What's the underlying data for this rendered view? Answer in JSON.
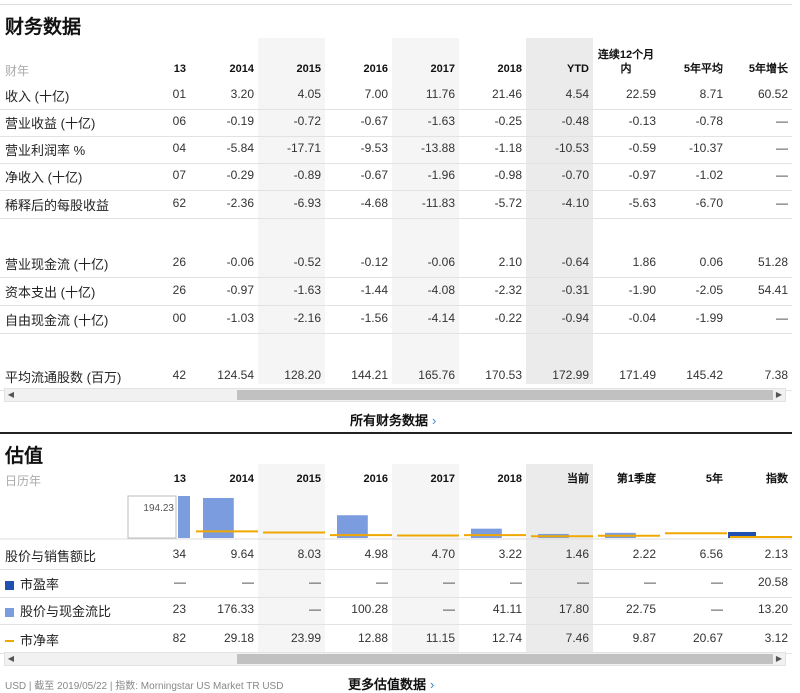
{
  "financials": {
    "title": "财务数据",
    "year_label": "财年",
    "columns": [
      "13",
      "2014",
      "2015",
      "2016",
      "2017",
      "2018",
      "YTD",
      "连续12个月内",
      "5年平均",
      "5年增长"
    ],
    "rows": [
      {
        "label": "收入 (十亿)",
        "values": [
          "01",
          "3.20",
          "4.05",
          "7.00",
          "11.76",
          "21.46",
          "4.54",
          "22.59",
          "8.71",
          "60.52"
        ]
      },
      {
        "label": "营业收益 (十亿)",
        "values": [
          "06",
          "-0.19",
          "-0.72",
          "-0.67",
          "-1.63",
          "-0.25",
          "-0.48",
          "-0.13",
          "-0.78",
          "—"
        ]
      },
      {
        "label": "营业利润率 %",
        "values": [
          "04",
          "-5.84",
          "-17.71",
          "-9.53",
          "-13.88",
          "-1.18",
          "-10.53",
          "-0.59",
          "-10.37",
          "—"
        ]
      },
      {
        "label": "净收入 (十亿)",
        "values": [
          "07",
          "-0.29",
          "-0.89",
          "-0.67",
          "-1.96",
          "-0.98",
          "-0.70",
          "-0.97",
          "-1.02",
          "—"
        ]
      },
      {
        "label": "稀释后的每股收益",
        "values": [
          "62",
          "-2.36",
          "-6.93",
          "-4.68",
          "-11.83",
          "-5.72",
          "-4.10",
          "-5.63",
          "-6.70",
          "—"
        ]
      },
      {
        "label": "营业现金流 (十亿)",
        "values": [
          "26",
          "-0.06",
          "-0.52",
          "-0.12",
          "-0.06",
          "2.10",
          "-0.64",
          "1.86",
          "0.06",
          "51.28"
        ]
      },
      {
        "label": "资本支出 (十亿)",
        "values": [
          "26",
          "-0.97",
          "-1.63",
          "-1.44",
          "-4.08",
          "-2.32",
          "-0.31",
          "-1.90",
          "-2.05",
          "54.41"
        ]
      },
      {
        "label": "自由现金流 (十亿)",
        "values": [
          "00",
          "-1.03",
          "-2.16",
          "-1.56",
          "-4.14",
          "-0.22",
          "-0.94",
          "-0.04",
          "-1.99",
          "—"
        ]
      },
      {
        "label": "平均流通股数 (百万)",
        "values": [
          "42",
          "124.54",
          "128.20",
          "144.21",
          "165.76",
          "170.53",
          "172.99",
          "171.49",
          "145.42",
          "7.38"
        ]
      }
    ],
    "more_link": "所有财务数据",
    "more_chevron": "›"
  },
  "valuation": {
    "title": "估值",
    "year_label": "日历年",
    "columns": [
      "13",
      "2014",
      "2015",
      "2016",
      "2017",
      "2018",
      "当前",
      "第1季度",
      "5年",
      "指数"
    ],
    "chart_max_label": "194.23",
    "rows": [
      {
        "label": "股价与销售额比",
        "values": [
          "34",
          "9.64",
          "8.03",
          "4.98",
          "4.70",
          "3.22",
          "1.46",
          "2.22",
          "6.56",
          "2.13"
        ]
      },
      {
        "label": "市盈率",
        "legend": "box",
        "color": "#1f4fb0",
        "values": [
          "—",
          "—",
          "—",
          "—",
          "—",
          "—",
          "—",
          "—",
          "—",
          "20.58"
        ]
      },
      {
        "label": "股价与现金流比",
        "legend": "box",
        "color": "#7b9de0",
        "values": [
          "23",
          "176.33",
          "—",
          "100.28",
          "—",
          "41.11",
          "17.80",
          "22.75",
          "—",
          "13.20"
        ]
      },
      {
        "label": "市净率",
        "legend": "line",
        "color": "#f0a800",
        "values": [
          "82",
          "29.18",
          "23.99",
          "12.88",
          "11.15",
          "12.74",
          "7.46",
          "9.87",
          "20.67",
          "3.12"
        ]
      }
    ],
    "more_link": "更多估值数据",
    "more_chevron": "›"
  },
  "footer": {
    "text": "USD | 截至 2019/05/22 | 指数: Morningstar US Market TR USD"
  },
  "scroll": {
    "left_arrow": "◀",
    "right_arrow": "▶"
  },
  "colors": {
    "pcf_bar": "#7b9de0",
    "pe_bar": "#1f4fb0",
    "pb_line": "#f0a800",
    "link_chevron": "#3a86c8"
  }
}
